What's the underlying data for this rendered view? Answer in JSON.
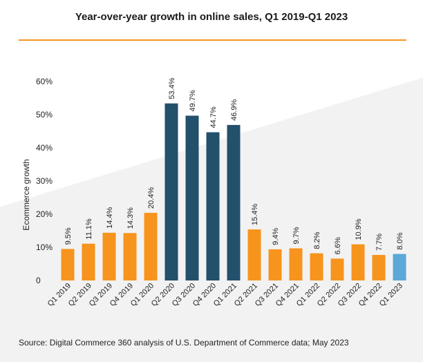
{
  "title": "Year-over-year growth in online sales, Q1 2019-Q1 2023",
  "source": "Source: Digital Commerce 360 analysis of U.S. Department of Commerce data; May 2023",
  "colors": {
    "orange": "#f7941d",
    "navy": "#23506b",
    "light_blue": "#5aa9d6",
    "title_rule": "#f7941d"
  },
  "chart_data": {
    "type": "bar",
    "title": "Year-over-year growth in online sales, Q1 2019-Q1 2023",
    "xlabel": "",
    "ylabel": "Ecommerce growth",
    "ylim": [
      0,
      60
    ],
    "yticks": [
      0,
      10,
      20,
      30,
      40,
      50,
      60
    ],
    "ytick_labels": [
      "0",
      "10%",
      "20%",
      "30%",
      "40%",
      "50%",
      "60%"
    ],
    "grid": false,
    "categories": [
      "Q1 2019",
      "Q2 2019",
      "Q3 2019",
      "Q4 2019",
      "Q1 2020",
      "Q2 2020",
      "Q3 2020",
      "Q4 2020",
      "Q1 2021",
      "Q2 2021",
      "Q3 2021",
      "Q4 2021",
      "Q1 2022",
      "Q2 2022",
      "Q3 2022",
      "Q4 2022",
      "Q1 2023"
    ],
    "values": [
      9.5,
      11.1,
      14.4,
      14.3,
      20.4,
      53.4,
      49.7,
      44.7,
      46.9,
      15.4,
      9.4,
      9.7,
      8.2,
      6.6,
      10.9,
      7.7,
      8.0
    ],
    "data_labels": [
      "9.5%",
      "11.1%",
      "14.4%",
      "14.3%",
      "20.4%",
      "53.4%",
      "49.7%",
      "44.7%",
      "46.9%",
      "15.4%",
      "9.4%",
      "9.7%",
      "8.2%",
      "6.6%",
      "10.9%",
      "7.7%",
      "8.0%"
    ],
    "bar_colors": [
      "orange",
      "orange",
      "orange",
      "orange",
      "orange",
      "navy",
      "navy",
      "navy",
      "navy",
      "orange",
      "orange",
      "orange",
      "orange",
      "orange",
      "orange",
      "orange",
      "light_blue"
    ]
  }
}
